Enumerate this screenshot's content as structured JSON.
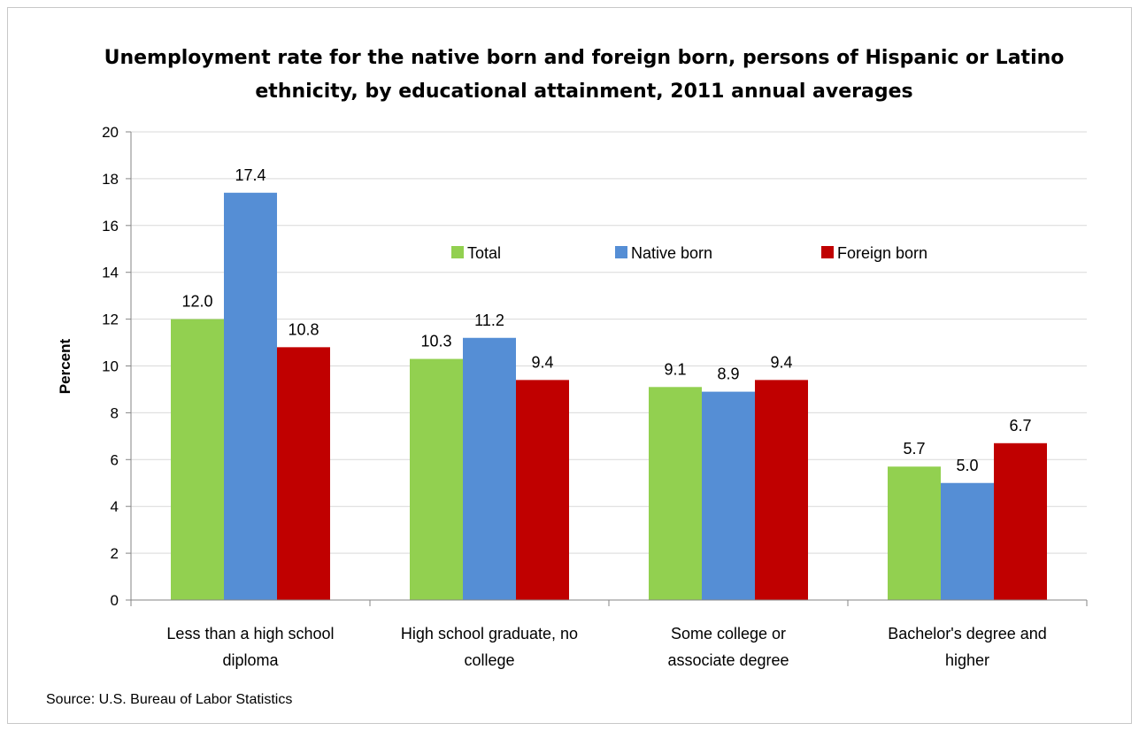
{
  "chart_data": {
    "type": "bar",
    "title": "Unemployment rate for the native born and foreign born, persons of Hispanic or Latino ethnicity, by educational attainment, 2011 annual averages",
    "title_lines": [
      "Unemployment rate for the native born and foreign born, persons of Hispanic or Latino",
      "ethnicity, by educational attainment, 2011 annual averages"
    ],
    "ylabel": "Percent",
    "xlabel": "",
    "ylim": [
      0,
      20
    ],
    "yticks": [
      0,
      2,
      4,
      6,
      8,
      10,
      12,
      14,
      16,
      18,
      20
    ],
    "grid": true,
    "legend_placement": "top-center",
    "categories": [
      "Less than a high school diploma",
      "High school graduate, no college",
      "Some college or associate degree",
      "Bachelor's degree and higher"
    ],
    "category_lines": [
      [
        "Less than a high school",
        "diploma"
      ],
      [
        "High school graduate, no",
        "college"
      ],
      [
        "Some college or",
        "associate degree"
      ],
      [
        "Bachelor's degree and",
        "higher"
      ]
    ],
    "series": [
      {
        "name": "Total",
        "color": "#92D050",
        "values": [
          12.0,
          10.3,
          9.1,
          5.7
        ],
        "labels": [
          "12.0",
          "10.3",
          "9.1",
          "5.7"
        ]
      },
      {
        "name": "Native born",
        "color": "#558ED5",
        "values": [
          17.4,
          11.2,
          8.9,
          5.0
        ],
        "labels": [
          "17.4",
          "11.2",
          "8.9",
          "5.0"
        ]
      },
      {
        "name": "Foreign born",
        "color": "#C00000",
        "values": [
          10.8,
          9.4,
          9.4,
          6.7
        ],
        "labels": [
          "10.8",
          "9.4",
          "9.4",
          "6.7"
        ]
      }
    ],
    "source": "Source: U.S. Bureau of Labor Statistics"
  }
}
